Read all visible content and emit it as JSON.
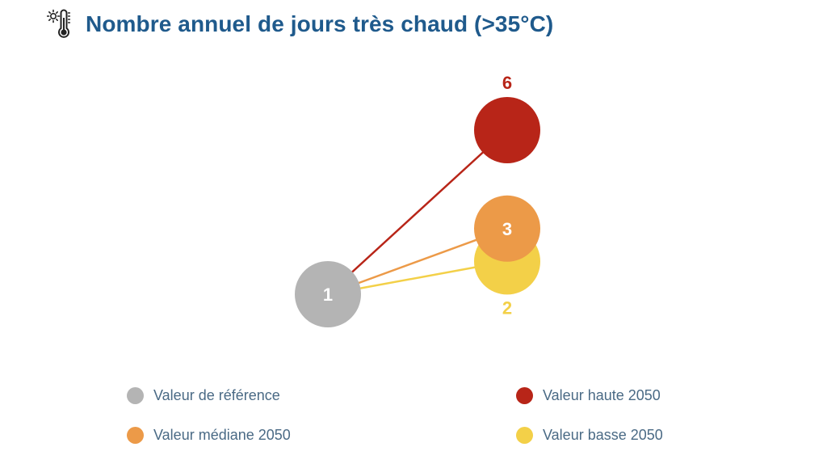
{
  "title": "Nombre annuel de jours très chaud (>35°C)",
  "colors": {
    "title": "#1f5a8c",
    "reference": "#b4b4b4",
    "haute": "#b82518",
    "mediane": "#ec9a48",
    "basse": "#f3d048",
    "legend_text": "#4a6a85"
  },
  "icon": "thermometer-sun-icon",
  "chart_data": {
    "type": "scatter",
    "y_axis": "Nombre annuel de jours très chaud (>35°C)",
    "points": [
      {
        "key": "reference",
        "name": "Valeur de référence",
        "period": "reference",
        "value": 1,
        "label": "1"
      },
      {
        "key": "haute",
        "name": "Valeur haute 2050",
        "period": "2050",
        "value": 6,
        "label": "6"
      },
      {
        "key": "mediane",
        "name": "Valeur médiane 2050",
        "period": "2050",
        "value": 3,
        "label": "3"
      },
      {
        "key": "basse",
        "name": "Valeur basse 2050",
        "period": "2050",
        "value": 2,
        "label": "2"
      }
    ]
  },
  "legend": [
    {
      "key": "reference",
      "label": "Valeur de référence"
    },
    {
      "key": "haute",
      "label": "Valeur haute 2050"
    },
    {
      "key": "mediane",
      "label": "Valeur médiane 2050"
    },
    {
      "key": "basse",
      "label": "Valeur basse 2050"
    }
  ]
}
